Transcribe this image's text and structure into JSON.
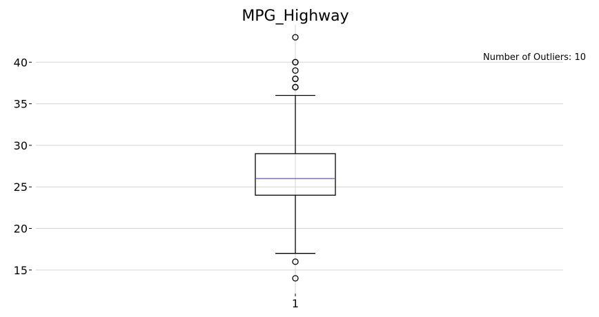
{
  "chart_data": {
    "type": "box",
    "title": "MPG_Highway",
    "xlabel": "",
    "ylabel": "",
    "categories": [
      "1"
    ],
    "ylim": [
      12,
      44.5
    ],
    "yticks": [
      "15",
      "20",
      "25",
      "30",
      "35",
      "40"
    ],
    "grid": true,
    "box": {
      "q1": 24,
      "median": 26,
      "q3": 29,
      "whisker_low": 17,
      "whisker_high": 36,
      "outliers": [
        43,
        40,
        40,
        39,
        38,
        38,
        37,
        37,
        16,
        14
      ]
    },
    "annotation": "Number of Outliers: 10",
    "colors": {
      "median": "#5b5bb0",
      "box": "#000000",
      "grid": "#d3d3d3"
    }
  }
}
